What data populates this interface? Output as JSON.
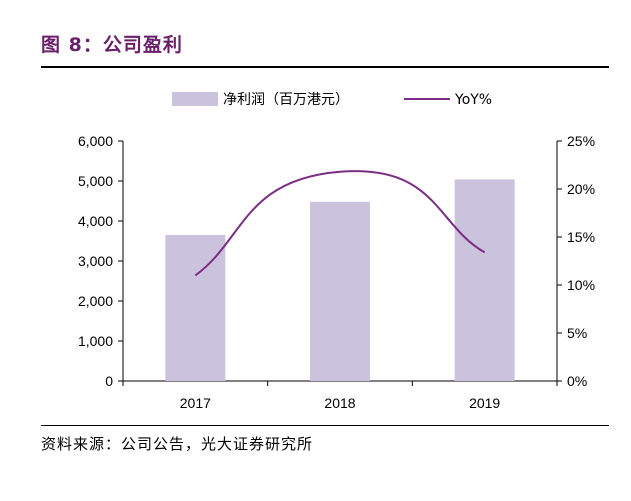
{
  "figure": {
    "title": "图 8：公司盈利",
    "source": "资料来源：公司公告，光大证券研究所"
  },
  "chart_data": {
    "type": "bar",
    "categories": [
      "2017",
      "2018",
      "2019"
    ],
    "series": [
      {
        "name": "净利润（百万港元）",
        "kind": "bar",
        "axis": "left",
        "values": [
          3650,
          4480,
          5040
        ]
      },
      {
        "name": "YoY%",
        "kind": "line",
        "axis": "right",
        "values": [
          11.0,
          21.8,
          13.4
        ]
      }
    ],
    "left_axis": {
      "ticks": [
        "0",
        "1,000",
        "2,000",
        "3,000",
        "4,000",
        "5,000",
        "6,000"
      ],
      "ylim": [
        0,
        6000
      ]
    },
    "right_axis": {
      "ticks": [
        "0%",
        "5%",
        "10%",
        "15%",
        "20%",
        "25%"
      ],
      "ylim": [
        0,
        25
      ]
    },
    "legend_position": "top",
    "grid": false,
    "colors": {
      "bar": "#cbc2de",
      "line": "#7b2c83",
      "title": "#6a1f6b"
    }
  }
}
